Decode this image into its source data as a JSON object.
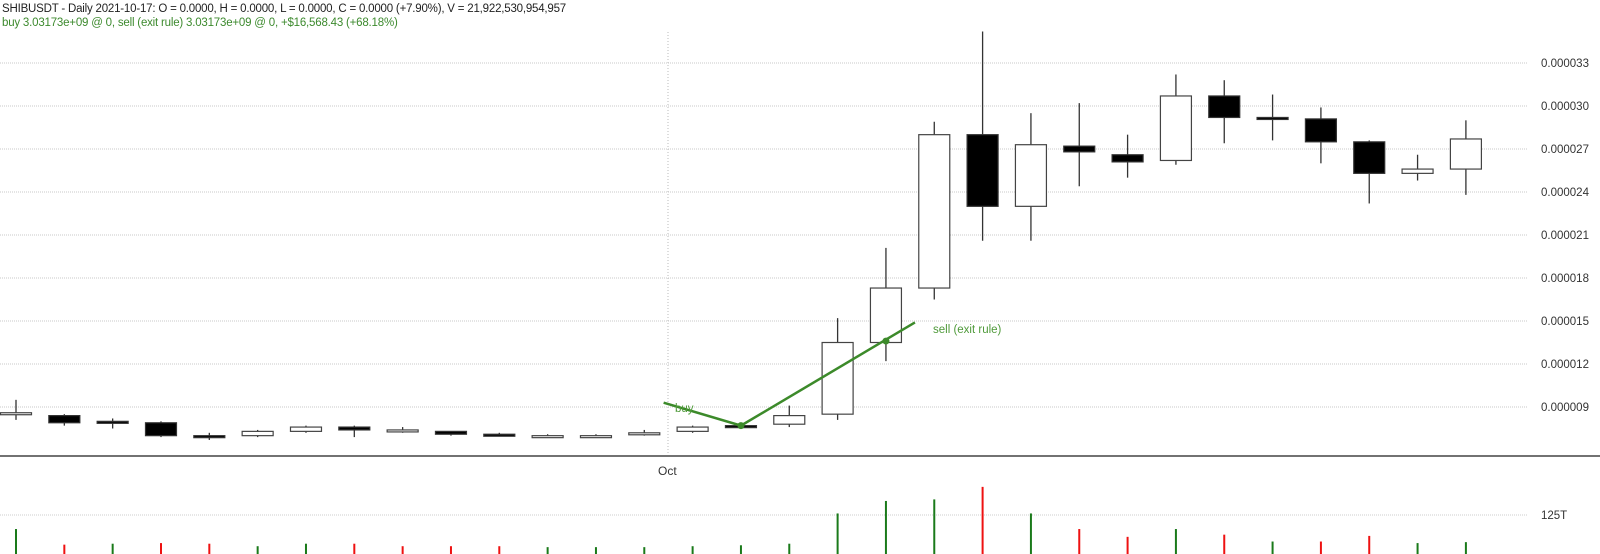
{
  "header": {
    "line1": "SHIBUSDT - Daily 2021-10-17:  O = 0.0000,  H = 0.0000,  L = 0.0000,  C = 0.0000 (+7.90%), V = 21,922,530,954,957",
    "line2": "buy 3.03173e+09 @ 0, sell (exit rule) 3.03173e+09 @ 0, +$16,568.43 (+68.18%)"
  },
  "colors": {
    "up_volume": "#1a7a1a",
    "down_volume": "#ee1111",
    "trade_line": "#3c8a2a",
    "grid": "#c8c8c8",
    "axis": "#444444"
  },
  "chart_data": {
    "type": "candlestick",
    "title": "SHIBUSDT - Daily",
    "symbol": "SHIBUSDT",
    "interval": "Daily",
    "xlabel": "",
    "ylabel": "",
    "x_tick_labels": [
      {
        "index": 13.5,
        "label": "Oct"
      }
    ],
    "y_ticks": [
      "0.000009",
      "0.000012",
      "0.000015",
      "0.000018",
      "0.000021",
      "0.000024",
      "0.000027",
      "0.000030",
      "0.000033"
    ],
    "ylim": [
      6.7e-06,
      3.52e-05
    ],
    "grid": true,
    "volume_axis_label": "125T",
    "volume_tick_value": 125,
    "candles": [
      {
        "o": 8.6e-06,
        "h": 9.5e-06,
        "l": 8.1e-06,
        "c": 8.6e-06
      },
      {
        "o": 8.4e-06,
        "h": 8.5e-06,
        "l": 7.7e-06,
        "c": 7.9e-06
      },
      {
        "o": 8e-06,
        "h": 8.2e-06,
        "l": 7.5e-06,
        "c": 7.9e-06
      },
      {
        "o": 7.9e-06,
        "h": 8e-06,
        "l": 6.9e-06,
        "c": 7e-06
      },
      {
        "o": 7e-06,
        "h": 7.2e-06,
        "l": 6.7e-06,
        "c": 6.9e-06
      },
      {
        "o": 7e-06,
        "h": 7.4e-06,
        "l": 6.9e-06,
        "c": 7.3e-06
      },
      {
        "o": 7.3e-06,
        "h": 7.7e-06,
        "l": 7.2e-06,
        "c": 7.6e-06
      },
      {
        "o": 7.6e-06,
        "h": 7.7e-06,
        "l": 6.9e-06,
        "c": 7.4e-06
      },
      {
        "o": 7.4e-06,
        "h": 7.6e-06,
        "l": 7.2e-06,
        "c": 7.4e-06
      },
      {
        "o": 7.3e-06,
        "h": 7.3e-06,
        "l": 7e-06,
        "c": 7.1e-06
      },
      {
        "o": 7.1e-06,
        "h": 7.2e-06,
        "l": 7e-06,
        "c": 7e-06
      },
      {
        "o": 7e-06,
        "h": 7.1e-06,
        "l": 7e-06,
        "c": 7e-06
      },
      {
        "o": 7e-06,
        "h": 7.1e-06,
        "l": 7e-06,
        "c": 7e-06
      },
      {
        "o": 7.1e-06,
        "h": 7.4e-06,
        "l": 7e-06,
        "c": 7.2e-06
      },
      {
        "o": 7.3e-06,
        "h": 7.7e-06,
        "l": 7.2e-06,
        "c": 7.6e-06
      },
      {
        "o": 7.7e-06,
        "h": 7.8e-06,
        "l": 7.5e-06,
        "c": 7.6e-06
      },
      {
        "o": 7.8e-06,
        "h": 9.1e-06,
        "l": 7.6e-06,
        "c": 8.4e-06
      },
      {
        "o": 8.5e-06,
        "h": 1.52e-05,
        "l": 8.1e-06,
        "c": 1.35e-05
      },
      {
        "o": 1.35e-05,
        "h": 2.01e-05,
        "l": 1.22e-05,
        "c": 1.73e-05
      },
      {
        "o": 1.73e-05,
        "h": 2.89e-05,
        "l": 1.65e-05,
        "c": 2.8e-05
      },
      {
        "o": 2.8e-05,
        "h": 3.52e-05,
        "l": 2.06e-05,
        "c": 2.3e-05
      },
      {
        "o": 2.3e-05,
        "h": 2.95e-05,
        "l": 2.06e-05,
        "c": 2.73e-05
      },
      {
        "o": 2.72e-05,
        "h": 3.02e-05,
        "l": 2.44e-05,
        "c": 2.68e-05
      },
      {
        "o": 2.66e-05,
        "h": 2.8e-05,
        "l": 2.5e-05,
        "c": 2.61e-05
      },
      {
        "o": 2.62e-05,
        "h": 3.22e-05,
        "l": 2.59e-05,
        "c": 3.07e-05
      },
      {
        "o": 3.07e-05,
        "h": 3.18e-05,
        "l": 2.74e-05,
        "c": 2.92e-05
      },
      {
        "o": 2.92e-05,
        "h": 3.08e-05,
        "l": 2.76e-05,
        "c": 2.91e-05
      },
      {
        "o": 2.91e-05,
        "h": 2.99e-05,
        "l": 2.6e-05,
        "c": 2.75e-05
      },
      {
        "o": 2.75e-05,
        "h": 2.76e-05,
        "l": 2.32e-05,
        "c": 2.53e-05
      },
      {
        "o": 2.53e-05,
        "h": 2.66e-05,
        "l": 2.48e-05,
        "c": 2.56e-05
      },
      {
        "o": 2.56e-05,
        "h": 2.9e-05,
        "l": 2.38e-05,
        "c": 2.77e-05
      }
    ],
    "volume": {
      "unit": "T",
      "series": [
        {
          "v": 80,
          "dir": "up"
        },
        {
          "v": 30,
          "dir": "down"
        },
        {
          "v": 33,
          "dir": "up"
        },
        {
          "v": 35,
          "dir": "down"
        },
        {
          "v": 33,
          "dir": "down"
        },
        {
          "v": 25,
          "dir": "up"
        },
        {
          "v": 33,
          "dir": "up"
        },
        {
          "v": 33,
          "dir": "down"
        },
        {
          "v": 25,
          "dir": "down"
        },
        {
          "v": 25,
          "dir": "down"
        },
        {
          "v": 25,
          "dir": "down"
        },
        {
          "v": 22,
          "dir": "up"
        },
        {
          "v": 22,
          "dir": "up"
        },
        {
          "v": 22,
          "dir": "up"
        },
        {
          "v": 25,
          "dir": "up"
        },
        {
          "v": 28,
          "dir": "up"
        },
        {
          "v": 33,
          "dir": "up"
        },
        {
          "v": 130,
          "dir": "up"
        },
        {
          "v": 170,
          "dir": "up"
        },
        {
          "v": 175,
          "dir": "up"
        },
        {
          "v": 215,
          "dir": "down"
        },
        {
          "v": 130,
          "dir": "up"
        },
        {
          "v": 80,
          "dir": "down"
        },
        {
          "v": 55,
          "dir": "down"
        },
        {
          "v": 80,
          "dir": "up"
        },
        {
          "v": 62,
          "dir": "down"
        },
        {
          "v": 40,
          "dir": "up"
        },
        {
          "v": 40,
          "dir": "down"
        },
        {
          "v": 58,
          "dir": "down"
        },
        {
          "v": 35,
          "dir": "up"
        },
        {
          "v": 38,
          "dir": "up"
        }
      ]
    },
    "annotations": [
      {
        "type": "trade-line",
        "label": "buy",
        "from_index": 13.4,
        "from_price": 9.3e-06,
        "to_index": 15,
        "to_price": 7.7e-06
      },
      {
        "type": "trade-line",
        "label": "sell (exit rule)",
        "from_index": 15,
        "from_price": 7.7e-06,
        "to_index": 18.6,
        "to_price": 1.49e-05
      },
      {
        "type": "marker",
        "index": 15,
        "price": 7.7e-06
      },
      {
        "type": "marker",
        "index": 18,
        "price": 1.36e-05
      }
    ],
    "legend": null
  },
  "labels": {
    "buy": "buy",
    "sell": "sell (exit rule)",
    "oct": "Oct",
    "vol_tick": "125T"
  }
}
